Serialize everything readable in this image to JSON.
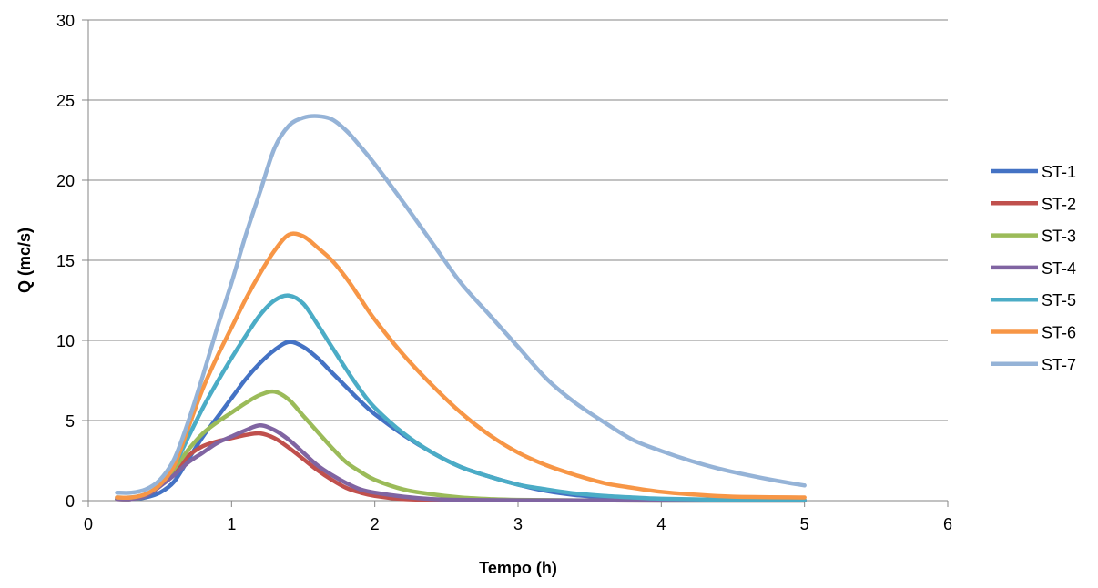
{
  "chart_data": {
    "type": "line",
    "title": "",
    "xlabel": "Tempo (h)",
    "ylabel": "Q (mc/s)",
    "xlim": [
      0,
      6
    ],
    "ylim": [
      0,
      30
    ],
    "xticks": [
      "0",
      "1",
      "2",
      "3",
      "4",
      "5",
      "6"
    ],
    "yticks": [
      "0",
      "5",
      "10",
      "15",
      "20",
      "25",
      "30"
    ],
    "grid": "horizontal",
    "legend_position": "right",
    "series": [
      {
        "name": "ST-1",
        "color": "#4472C4",
        "points": [
          [
            0.2,
            0.1
          ],
          [
            0.3,
            0.1
          ],
          [
            0.4,
            0.2
          ],
          [
            0.5,
            0.5
          ],
          [
            0.6,
            1.2
          ],
          [
            0.7,
            2.6
          ],
          [
            0.8,
            4.0
          ],
          [
            0.9,
            5.2
          ],
          [
            1.0,
            6.4
          ],
          [
            1.1,
            7.6
          ],
          [
            1.2,
            8.6
          ],
          [
            1.3,
            9.4
          ],
          [
            1.4,
            9.9
          ],
          [
            1.5,
            9.6
          ],
          [
            1.6,
            8.9
          ],
          [
            1.7,
            8.0
          ],
          [
            1.8,
            7.1
          ],
          [
            1.9,
            6.2
          ],
          [
            2.0,
            5.4
          ],
          [
            2.2,
            4.1
          ],
          [
            2.4,
            3.0
          ],
          [
            2.6,
            2.1
          ],
          [
            2.8,
            1.5
          ],
          [
            3.0,
            1.0
          ],
          [
            3.2,
            0.6
          ],
          [
            3.4,
            0.35
          ],
          [
            3.6,
            0.2
          ],
          [
            3.8,
            0.1
          ],
          [
            4.0,
            0.05
          ],
          [
            4.5,
            0.03
          ],
          [
            5.0,
            0.02
          ]
        ]
      },
      {
        "name": "ST-2",
        "color": "#C0504D",
        "points": [
          [
            0.2,
            0.1
          ],
          [
            0.3,
            0.1
          ],
          [
            0.4,
            0.3
          ],
          [
            0.5,
            0.9
          ],
          [
            0.6,
            1.8
          ],
          [
            0.7,
            2.8
          ],
          [
            0.8,
            3.4
          ],
          [
            0.9,
            3.7
          ],
          [
            1.0,
            3.9
          ],
          [
            1.1,
            4.1
          ],
          [
            1.2,
            4.2
          ],
          [
            1.3,
            3.9
          ],
          [
            1.4,
            3.3
          ],
          [
            1.5,
            2.6
          ],
          [
            1.6,
            1.9
          ],
          [
            1.7,
            1.3
          ],
          [
            1.8,
            0.8
          ],
          [
            1.9,
            0.5
          ],
          [
            2.0,
            0.3
          ],
          [
            2.2,
            0.1
          ],
          [
            2.5,
            0.05
          ],
          [
            3.0,
            0.02
          ],
          [
            4.0,
            0.01
          ],
          [
            5.0,
            0.01
          ]
        ]
      },
      {
        "name": "ST-3",
        "color": "#9BBB59",
        "points": [
          [
            0.2,
            0.1
          ],
          [
            0.3,
            0.1
          ],
          [
            0.4,
            0.3
          ],
          [
            0.5,
            1.0
          ],
          [
            0.6,
            2.0
          ],
          [
            0.7,
            3.2
          ],
          [
            0.8,
            4.2
          ],
          [
            0.9,
            4.9
          ],
          [
            1.0,
            5.5
          ],
          [
            1.1,
            6.1
          ],
          [
            1.2,
            6.6
          ],
          [
            1.3,
            6.8
          ],
          [
            1.4,
            6.3
          ],
          [
            1.5,
            5.3
          ],
          [
            1.6,
            4.3
          ],
          [
            1.7,
            3.3
          ],
          [
            1.8,
            2.4
          ],
          [
            1.9,
            1.8
          ],
          [
            2.0,
            1.3
          ],
          [
            2.2,
            0.7
          ],
          [
            2.4,
            0.4
          ],
          [
            2.6,
            0.2
          ],
          [
            2.8,
            0.1
          ],
          [
            3.0,
            0.05
          ],
          [
            3.5,
            0.02
          ],
          [
            4.0,
            0.01
          ],
          [
            5.0,
            0.01
          ]
        ]
      },
      {
        "name": "ST-4",
        "color": "#8064A2",
        "points": [
          [
            0.2,
            0.1
          ],
          [
            0.3,
            0.1
          ],
          [
            0.4,
            0.3
          ],
          [
            0.5,
            0.9
          ],
          [
            0.6,
            1.6
          ],
          [
            0.7,
            2.4
          ],
          [
            0.8,
            3.0
          ],
          [
            0.9,
            3.6
          ],
          [
            1.0,
            4.0
          ],
          [
            1.1,
            4.4
          ],
          [
            1.2,
            4.7
          ],
          [
            1.3,
            4.4
          ],
          [
            1.4,
            3.8
          ],
          [
            1.5,
            3.0
          ],
          [
            1.6,
            2.2
          ],
          [
            1.7,
            1.6
          ],
          [
            1.8,
            1.1
          ],
          [
            1.9,
            0.7
          ],
          [
            2.0,
            0.5
          ],
          [
            2.2,
            0.25
          ],
          [
            2.4,
            0.1
          ],
          [
            2.6,
            0.05
          ],
          [
            3.0,
            0.02
          ],
          [
            4.0,
            0.01
          ],
          [
            5.0,
            0.01
          ]
        ]
      },
      {
        "name": "ST-5",
        "color": "#4BACC6",
        "points": [
          [
            0.2,
            0.2
          ],
          [
            0.3,
            0.2
          ],
          [
            0.4,
            0.4
          ],
          [
            0.5,
            1.0
          ],
          [
            0.6,
            2.2
          ],
          [
            0.7,
            4.0
          ],
          [
            0.8,
            5.8
          ],
          [
            0.9,
            7.4
          ],
          [
            1.0,
            8.9
          ],
          [
            1.1,
            10.3
          ],
          [
            1.2,
            11.6
          ],
          [
            1.3,
            12.5
          ],
          [
            1.4,
            12.8
          ],
          [
            1.5,
            12.3
          ],
          [
            1.6,
            11.0
          ],
          [
            1.7,
            9.6
          ],
          [
            1.8,
            8.2
          ],
          [
            1.9,
            6.9
          ],
          [
            2.0,
            5.8
          ],
          [
            2.2,
            4.2
          ],
          [
            2.4,
            3.0
          ],
          [
            2.6,
            2.1
          ],
          [
            2.8,
            1.5
          ],
          [
            3.0,
            1.0
          ],
          [
            3.2,
            0.7
          ],
          [
            3.4,
            0.45
          ],
          [
            3.6,
            0.3
          ],
          [
            3.8,
            0.2
          ],
          [
            4.0,
            0.12
          ],
          [
            4.5,
            0.05
          ],
          [
            5.0,
            0.03
          ]
        ]
      },
      {
        "name": "ST-6",
        "color": "#F79646",
        "points": [
          [
            0.2,
            0.2
          ],
          [
            0.3,
            0.2
          ],
          [
            0.4,
            0.4
          ],
          [
            0.5,
            1.0
          ],
          [
            0.6,
            2.2
          ],
          [
            0.7,
            4.6
          ],
          [
            0.8,
            7.0
          ],
          [
            0.9,
            9.0
          ],
          [
            1.0,
            10.8
          ],
          [
            1.1,
            12.6
          ],
          [
            1.2,
            14.2
          ],
          [
            1.3,
            15.6
          ],
          [
            1.4,
            16.6
          ],
          [
            1.5,
            16.5
          ],
          [
            1.6,
            15.8
          ],
          [
            1.7,
            15.0
          ],
          [
            1.8,
            13.9
          ],
          [
            1.9,
            12.6
          ],
          [
            2.0,
            11.3
          ],
          [
            2.2,
            9.1
          ],
          [
            2.4,
            7.2
          ],
          [
            2.6,
            5.5
          ],
          [
            2.8,
            4.1
          ],
          [
            3.0,
            3.0
          ],
          [
            3.2,
            2.2
          ],
          [
            3.4,
            1.6
          ],
          [
            3.6,
            1.1
          ],
          [
            3.8,
            0.8
          ],
          [
            4.0,
            0.55
          ],
          [
            4.2,
            0.4
          ],
          [
            4.5,
            0.25
          ],
          [
            5.0,
            0.2
          ]
        ]
      },
      {
        "name": "ST-7",
        "color": "#95B3D7",
        "points": [
          [
            0.2,
            0.5
          ],
          [
            0.3,
            0.5
          ],
          [
            0.4,
            0.7
          ],
          [
            0.5,
            1.3
          ],
          [
            0.6,
            2.6
          ],
          [
            0.7,
            5.0
          ],
          [
            0.8,
            7.8
          ],
          [
            0.9,
            10.8
          ],
          [
            1.0,
            13.6
          ],
          [
            1.1,
            16.6
          ],
          [
            1.2,
            19.3
          ],
          [
            1.3,
            22.0
          ],
          [
            1.4,
            23.4
          ],
          [
            1.5,
            23.9
          ],
          [
            1.6,
            24.0
          ],
          [
            1.7,
            23.8
          ],
          [
            1.8,
            23.1
          ],
          [
            1.9,
            22.1
          ],
          [
            2.0,
            21.0
          ],
          [
            2.2,
            18.6
          ],
          [
            2.4,
            16.1
          ],
          [
            2.6,
            13.6
          ],
          [
            2.8,
            11.6
          ],
          [
            3.0,
            9.6
          ],
          [
            3.2,
            7.6
          ],
          [
            3.4,
            6.1
          ],
          [
            3.6,
            4.9
          ],
          [
            3.8,
            3.8
          ],
          [
            4.0,
            3.1
          ],
          [
            4.2,
            2.5
          ],
          [
            4.4,
            2.0
          ],
          [
            4.6,
            1.6
          ],
          [
            4.8,
            1.25
          ],
          [
            5.0,
            0.95
          ]
        ]
      }
    ]
  }
}
